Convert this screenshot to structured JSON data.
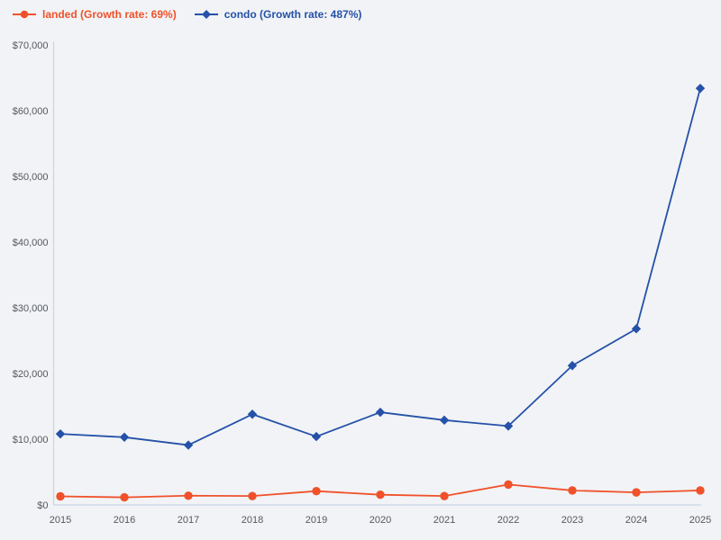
{
  "legend": {
    "items": [
      {
        "label": "landed (Growth rate: 69%)",
        "color": "#f0512a",
        "marker": "circle"
      },
      {
        "label": "condo (Growth rate: 487%)",
        "color": "#2551a8",
        "marker": "diamond"
      }
    ]
  },
  "colors": {
    "background": "#f1f3f6",
    "axis_line": "#c9d4e6",
    "tick_text": "#54585f",
    "landed_series": "#f0512a",
    "condo_series": "#2551a8"
  },
  "chart_data": {
    "type": "line",
    "x": [
      2015,
      2016,
      2017,
      2018,
      2019,
      2020,
      2021,
      2022,
      2023,
      2024,
      2025
    ],
    "x_tick_labels": [
      "2015",
      "2016",
      "2017",
      "2018",
      "2019",
      "2020",
      "2021",
      "2022",
      "2023",
      "2024",
      "2025"
    ],
    "series": [
      {
        "name": "landed",
        "legend_label": "landed (Growth rate: 69%)",
        "growth_rate": "69%",
        "color": "#f0512a",
        "marker": "circle",
        "values": [
          1300,
          1150,
          1400,
          1350,
          2100,
          1550,
          1350,
          3100,
          2200,
          1900,
          2200
        ]
      },
      {
        "name": "condo",
        "legend_label": "condo (Growth rate: 487%)",
        "growth_rate": "487%",
        "color": "#2551a8",
        "marker": "diamond",
        "values": [
          10800,
          10300,
          9100,
          13800,
          10400,
          14100,
          12900,
          12000,
          21200,
          26800,
          63400
        ]
      }
    ],
    "title": "",
    "xlabel": "",
    "ylabel": "",
    "ylim": [
      0,
      70000
    ],
    "y_tick_step": 10000,
    "y_tick_labels": [
      "$0",
      "$10,000",
      "$20,000",
      "$30,000",
      "$40,000",
      "$50,000",
      "$60,000",
      "$70,000"
    ],
    "y_tick_prefix": "$",
    "grid": false,
    "legend_position": "top-left"
  }
}
